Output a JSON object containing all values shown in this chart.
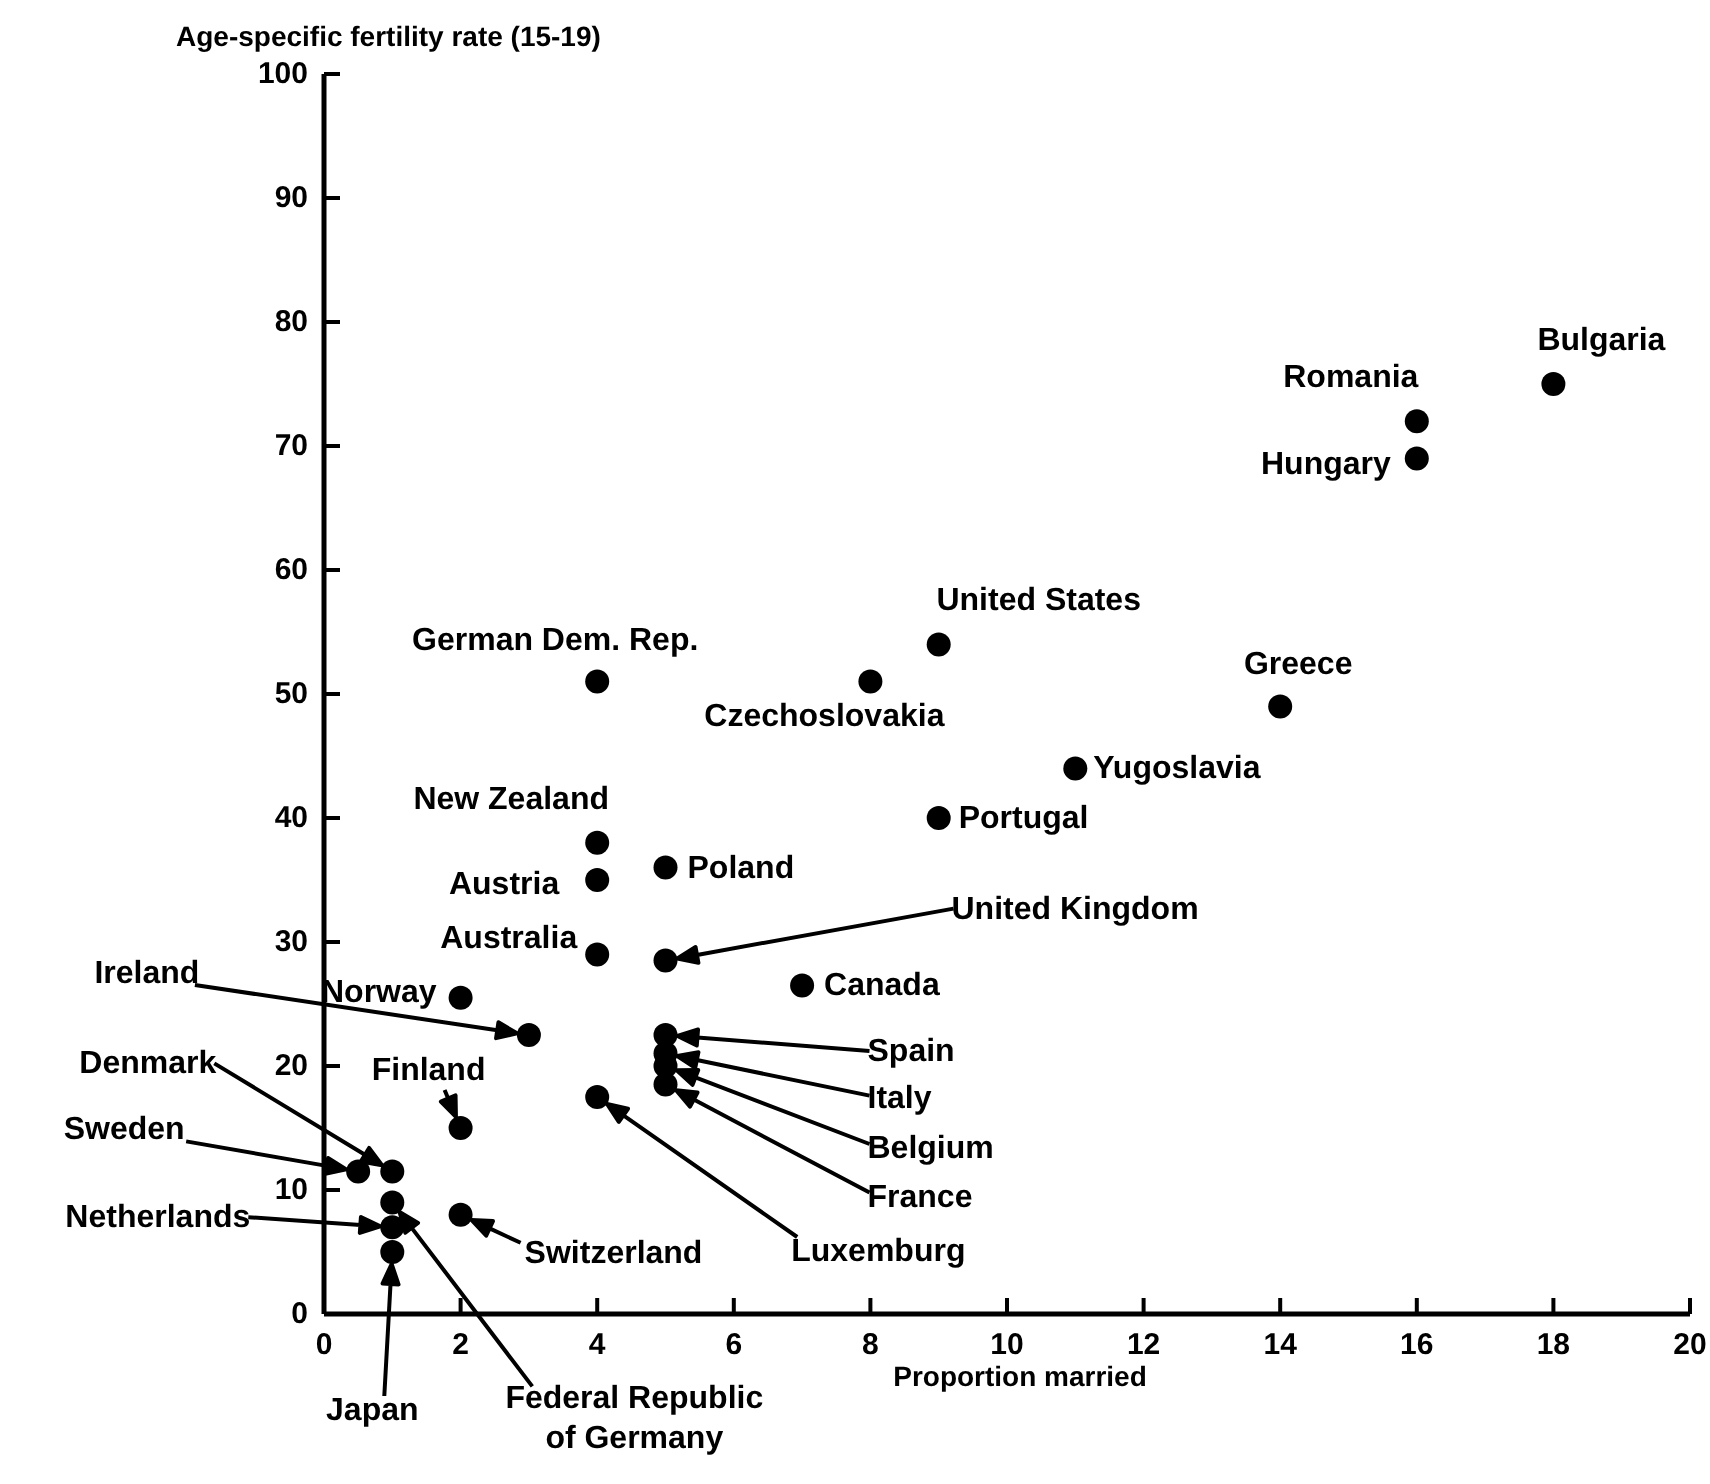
{
  "chart_data": {
    "type": "scatter",
    "ylabel": "Age-specific fertility rate (15-19)",
    "xlabel": "Proportion married",
    "xlim": [
      0,
      20
    ],
    "xticks": [
      0,
      2,
      4,
      6,
      8,
      10,
      12,
      14,
      16,
      18,
      20
    ],
    "ylim": [
      0,
      100
    ],
    "yticks": [
      0,
      10,
      20,
      30,
      40,
      50,
      60,
      70,
      80,
      90,
      100
    ],
    "grid": false,
    "legend": false,
    "marker": "circle",
    "x": [
      18,
      16,
      16,
      4,
      8,
      9,
      14,
      11,
      9,
      4,
      5,
      4,
      4,
      5,
      7,
      2,
      3,
      5,
      5,
      5,
      5,
      4,
      2,
      0.5,
      1,
      2,
      1,
      1,
      1
    ],
    "values": [
      75,
      72,
      69,
      51,
      51,
      54,
      49,
      44,
      40,
      38,
      36,
      35,
      29,
      28.5,
      26.5,
      25.5,
      22.5,
      22.5,
      21,
      20,
      18.5,
      17.5,
      15,
      11.5,
      11.5,
      8,
      9,
      7,
      5
    ],
    "color": "#000000",
    "annotations": [
      {
        "text": "Bulgaria",
        "x": 18,
        "y": 75
      },
      {
        "text": "Romania",
        "x": 16,
        "y": 72
      },
      {
        "text": "Hungary",
        "x": 16,
        "y": 69
      },
      {
        "text": "German Dem. Rep.",
        "x": 4,
        "y": 51
      },
      {
        "text": "Czechoslovakia",
        "x": 8,
        "y": 51
      },
      {
        "text": "United States",
        "x": 9,
        "y": 54
      },
      {
        "text": "Greece",
        "x": 14,
        "y": 49
      },
      {
        "text": "Yugoslavia",
        "x": 11,
        "y": 44
      },
      {
        "text": "Portugal",
        "x": 9,
        "y": 40
      },
      {
        "text": "New Zealand",
        "x": 4,
        "y": 38
      },
      {
        "text": "Poland",
        "x": 5,
        "y": 36
      },
      {
        "text": "Austria",
        "x": 4,
        "y": 35
      },
      {
        "text": "Australia",
        "x": 4,
        "y": 29
      },
      "United Kingdom",
      {
        "text": "Canada",
        "x": 7,
        "y": 26.5
      },
      {
        "text": "Norway",
        "x": 2,
        "y": 25.5
      },
      "Ireland",
      "Spain",
      "Italy",
      "Belgium",
      "France",
      "Luxemburg",
      {
        "text": "Finland",
        "x": 2,
        "y": 15
      },
      "Sweden",
      "Denmark",
      {
        "text": "Switzerland",
        "x": 2,
        "y": 8
      },
      "Federal Republic\nof Germany",
      "Netherlands",
      "Japan"
    ]
  }
}
